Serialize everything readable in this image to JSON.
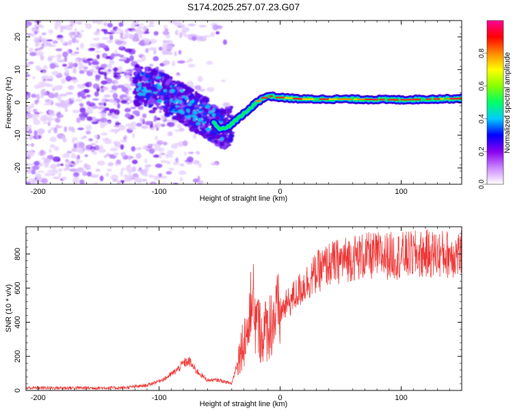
{
  "title": "S174.2025.257.07.23.G07",
  "chart_data": [
    {
      "type": "heatmap",
      "description_role": "spectrogram",
      "title": "S174.2025.257.07.23.G07",
      "xlabel": "Height of straight line (km)",
      "ylabel": "Frequency (Hz)",
      "xlim": [
        -210,
        150
      ],
      "ylim": [
        -25,
        25
      ],
      "xticks": [
        -200,
        -100,
        0,
        100
      ],
      "yticks": [
        -20,
        -10,
        0,
        10,
        20
      ],
      "ridge": {
        "x": [
          -110,
          -100,
          -90,
          -80,
          -70,
          -60,
          -55,
          -50,
          -45,
          -40,
          -35,
          -30,
          -25,
          -20,
          -15,
          -10,
          0,
          20,
          50,
          100,
          150
        ],
        "y": [
          5,
          3.5,
          1.5,
          -0.5,
          -3,
          -5,
          -6,
          -8,
          -8,
          -6.5,
          -5,
          -3.5,
          -2,
          0,
          1,
          2,
          1.5,
          1,
          1,
          0.8,
          1.2
        ]
      },
      "colorbar": {
        "label": "Normalized spectral amplitude",
        "range": [
          0,
          1
        ],
        "ticks": [
          "0.0",
          "0.2",
          "0.4",
          "0.6",
          "0.8"
        ],
        "colors": [
          "#ffffff",
          "#cc88ff",
          "#8800ee",
          "#0000ff",
          "#00ccff",
          "#00ff66",
          "#88ff00",
          "#ffff00",
          "#ff8800",
          "#ff0000",
          "#ff0099"
        ]
      }
    },
    {
      "type": "line",
      "xlabel": "Height of straight line (km)",
      "ylabel": "SNR (10 * v/v)",
      "xlim": [
        -210,
        150
      ],
      "ylim": [
        0,
        960
      ],
      "xticks": [
        -200,
        -100,
        0,
        100
      ],
      "yticks": [
        0,
        200,
        400,
        600,
        800
      ],
      "color": "#ee3333",
      "envelope": {
        "x": [
          -210,
          -130,
          -110,
          -95,
          -85,
          -80,
          -75,
          -70,
          -60,
          -50,
          -40,
          -34,
          -30,
          -25,
          -20,
          -15,
          -10,
          -5,
          0,
          10,
          20,
          30,
          40,
          60,
          80,
          100,
          120,
          150
        ],
        "y": [
          15,
          15,
          30,
          70,
          120,
          160,
          170,
          120,
          60,
          60,
          40,
          200,
          300,
          380,
          400,
          330,
          370,
          430,
          460,
          540,
          620,
          690,
          740,
          780,
          790,
          790,
          800,
          800
        ]
      }
    }
  ]
}
